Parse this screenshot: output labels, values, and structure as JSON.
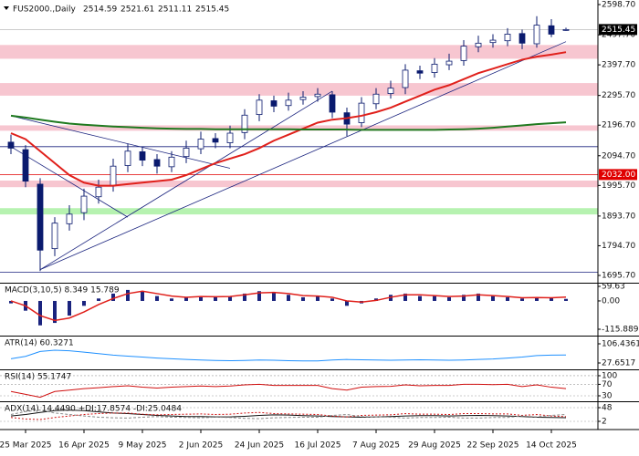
{
  "chart_data": [
    {
      "type": "candlestick",
      "title": "FUS2000.,Daily",
      "categories": [
        null,
        "25 Mar 2025",
        null,
        null,
        null,
        "16 Apr 2025",
        null,
        null,
        null,
        "9 May 2025",
        null,
        null,
        null,
        "2 Jun 2025",
        null,
        null,
        null,
        "24 Jun 2025",
        null,
        null,
        null,
        "16 Jul 2025",
        null,
        null,
        null,
        "7 Aug 2025",
        null,
        null,
        null,
        "29 Aug 2025",
        null,
        null,
        null,
        "22 Sep 2025",
        null,
        null,
        null,
        "14 Oct 2025",
        null
      ],
      "open": [
        2140,
        2115,
        2000,
        1785,
        1868,
        1905,
        1958,
        1995,
        2062,
        2108,
        2082,
        2058,
        2092,
        2118,
        2152,
        2138,
        2172,
        2232,
        2278,
        2262,
        2282,
        2292,
        2298,
        2238,
        2205,
        2268,
        2302,
        2322,
        2378,
        2372,
        2398,
        2412,
        2458,
        2472,
        2478,
        2502,
        2468,
        2528,
        2514.59
      ],
      "high": [
        2165,
        2130,
        2020,
        1890,
        1930,
        1985,
        2015,
        2085,
        2135,
        2125,
        2100,
        2110,
        2145,
        2175,
        2170,
        2195,
        2250,
        2300,
        2295,
        2305,
        2310,
        2320,
        2310,
        2255,
        2290,
        2320,
        2345,
        2400,
        2395,
        2420,
        2435,
        2480,
        2495,
        2500,
        2520,
        2515,
        2560,
        2550,
        2521.61
      ],
      "low": [
        2100,
        1990,
        1710,
        1760,
        1845,
        1880,
        1935,
        1975,
        2040,
        2060,
        2035,
        2040,
        2070,
        2100,
        2120,
        2120,
        2150,
        2210,
        2240,
        2245,
        2265,
        2275,
        2220,
        2160,
        2190,
        2250,
        2285,
        2300,
        2350,
        2355,
        2380,
        2395,
        2440,
        2455,
        2460,
        2450,
        2455,
        2490,
        2511.11
      ],
      "close": [
        2120,
        2010,
        1780,
        1870,
        1900,
        1960,
        1990,
        2060,
        2110,
        2080,
        2060,
        2090,
        2120,
        2150,
        2140,
        2170,
        2230,
        2280,
        2260,
        2280,
        2290,
        2300,
        2240,
        2200,
        2270,
        2300,
        2320,
        2380,
        2370,
        2400,
        2410,
        2460,
        2470,
        2480,
        2500,
        2470,
        2530,
        2500,
        2515.45
      ],
      "candle_color": "#0a1a6e",
      "series": [
        {
          "color": "#e0201b",
          "values": [
            2170,
            2150,
            2110,
            2070,
            2030,
            2005,
            1995,
            1995,
            2000,
            2005,
            2010,
            2015,
            2030,
            2050,
            2070,
            2085,
            2100,
            2120,
            2145,
            2165,
            2185,
            2205,
            2215,
            2220,
            2228,
            2240,
            2255,
            2275,
            2295,
            2315,
            2330,
            2350,
            2370,
            2385,
            2400,
            2415,
            2425,
            2432,
            2440
          ]
        },
        {
          "color": "#1f7a1f",
          "values": [
            2228,
            2222,
            2215,
            2208,
            2202,
            2198,
            2195,
            2192,
            2190,
            2188,
            2186,
            2185,
            2184,
            2184,
            2183,
            2183,
            2183,
            2183,
            2183,
            2183,
            2182,
            2182,
            2182,
            2182,
            2181,
            2181,
            2181,
            2181,
            2181,
            2181,
            2182,
            2183,
            2185,
            2188,
            2192,
            2196,
            2200,
            2203,
            2206
          ]
        }
      ],
      "zones": [
        {
          "from": 2418,
          "to": 2464,
          "color": "#f7c6d0"
        },
        {
          "from": 2295,
          "to": 2337,
          "color": "#f7c6d0"
        },
        {
          "from": 2178,
          "to": 2196,
          "color": "#f7c6d0"
        },
        {
          "from": 1990,
          "to": 2012,
          "color": "#f7c6d0"
        },
        {
          "from": 1899,
          "to": 1920,
          "color": "#b6f2b0"
        }
      ],
      "hlines": [
        {
          "value": 2125,
          "color": "#1a237e"
        },
        {
          "value": 1706,
          "color": "#1a237e"
        }
      ],
      "trendlines": [
        {
          "from": [
            0,
            2228
          ],
          "to": [
            15,
            2053
          ],
          "color": "#1a237e"
        },
        {
          "from": [
            0,
            2125
          ],
          "to": [
            8,
            1890
          ],
          "color": "#1a237e"
        },
        {
          "from": [
            2,
            1715
          ],
          "to": [
            22,
            2310
          ],
          "color": "#1a237e"
        },
        {
          "from": [
            2,
            1715
          ],
          "to": [
            38,
            2475
          ],
          "color": "#1a237e"
        }
      ],
      "levels": [
        {
          "value": 2032,
          "label": "2032.00",
          "color": "#e00000"
        }
      ],
      "last": {
        "value": 2515.45,
        "label": "2515.45",
        "color": "#000000"
      },
      "ylim": [
        1671.4,
        2613.9
      ],
      "yticks": [
        {
          "value": 2598.7,
          "label": "2598.70"
        },
        {
          "value": 2497.7,
          "label": "2497.70"
        },
        {
          "value": 2397.7,
          "label": "2397.70"
        },
        {
          "value": 2295.7,
          "label": "2295.70"
        },
        {
          "value": 2196.7,
          "label": "2196.70"
        },
        {
          "value": 2094.7,
          "label": "2094.70"
        },
        {
          "value": 1995.7,
          "label": "1995.70"
        },
        {
          "value": 1893.7,
          "label": "1893.70"
        },
        {
          "value": 1794.7,
          "label": "1794.70"
        },
        {
          "value": 1695.7,
          "label": "1695.70"
        }
      ]
    },
    {
      "type": "macd",
      "title": "MACD(3,10,5) 8.349 15.789",
      "values": [
        -10,
        -40,
        -100,
        -90,
        -60,
        -20,
        10,
        30,
        45,
        40,
        20,
        10,
        15,
        20,
        15,
        20,
        30,
        40,
        35,
        25,
        15,
        20,
        10,
        -20,
        -10,
        10,
        25,
        30,
        20,
        20,
        15,
        25,
        30,
        20,
        15,
        10,
        15,
        12,
        8.349
      ],
      "color": "#1a237e",
      "series": [
        {
          "color": "#e0201b",
          "values": [
            0,
            -20,
            -60,
            -80,
            -70,
            -45,
            -15,
            10,
            30,
            40,
            30,
            20,
            15,
            18,
            17,
            18,
            25,
            33,
            35,
            30,
            22,
            20,
            15,
            0,
            -5,
            2,
            15,
            25,
            25,
            22,
            18,
            20,
            25,
            22,
            18,
            13,
            14,
            13,
            15.789
          ]
        }
      ],
      "ylim": [
        -142,
        70.8
      ],
      "yticks": [
        {
          "value": 59.63,
          "label": "59.63"
        },
        {
          "value": 0,
          "label": "0.00"
        },
        {
          "value": -115.889,
          "label": "-115.889"
        }
      ]
    },
    {
      "type": "line",
      "title": "ATR(14) 60.3271",
      "series": [
        {
          "color": "#1e90ff",
          "values": [
            45,
            55,
            75,
            80,
            78,
            72,
            66,
            60,
            56,
            52,
            48,
            45,
            42,
            40,
            38,
            37,
            38,
            40,
            39,
            37,
            36,
            36,
            40,
            42,
            41,
            40,
            39,
            40,
            41,
            40,
            39,
            40,
            42,
            44,
            48,
            52,
            58,
            60,
            60.3271
          ]
        }
      ],
      "ylim": [
        1.4,
        136.4
      ],
      "yticks": [
        {
          "value": 106.4361,
          "label": "106.4361"
        },
        {
          "value": 27.6517,
          "label": "27.6517"
        }
      ]
    },
    {
      "type": "line",
      "title": "RSI(14) 55.1747",
      "series": [
        {
          "color": "#d01010",
          "values": [
            45,
            35,
            25,
            45,
            50,
            55,
            58,
            62,
            65,
            60,
            57,
            60,
            62,
            64,
            62,
            64,
            68,
            70,
            66,
            66,
            66,
            66,
            55,
            50,
            60,
            62,
            63,
            68,
            65,
            66,
            66,
            70,
            70,
            69,
            70,
            62,
            68,
            60,
            55.1747
          ]
        }
      ],
      "grid": "dashed",
      "ylim": [
        10.9,
        119
      ],
      "yticks": [
        100,
        70,
        30
      ]
    },
    {
      "type": "line",
      "title": "ADX(14) 14.4490 +DI:17.8574 -DI:25.0484",
      "series": [
        {
          "color": "#111111",
          "values": [
            20,
            25,
            32,
            38,
            40,
            38,
            34,
            30,
            28,
            25,
            22,
            20,
            18,
            18,
            17,
            17,
            19,
            22,
            24,
            23,
            21,
            20,
            18,
            17,
            16,
            17,
            18,
            20,
            21,
            21,
            20,
            21,
            22,
            21,
            20,
            18,
            16,
            15,
            14.449
          ]
        },
        {
          "color": "#d01010",
          "dash": "2,2",
          "values": [
            15,
            10,
            8,
            15,
            20,
            25,
            28,
            30,
            30,
            26,
            24,
            25,
            26,
            27,
            25,
            26,
            30,
            32,
            28,
            27,
            26,
            25,
            20,
            17,
            22,
            23,
            24,
            28,
            26,
            26,
            25,
            28,
            28,
            27,
            27,
            22,
            25,
            20,
            17.8574
          ]
        },
        {
          "color": "#888888",
          "dash": "3,2",
          "values": [
            25,
            35,
            40,
            30,
            25,
            20,
            16,
            14,
            13,
            16,
            18,
            16,
            15,
            14,
            16,
            15,
            12,
            11,
            14,
            15,
            16,
            16,
            22,
            25,
            18,
            17,
            16,
            13,
            15,
            15,
            16,
            13,
            13,
            15,
            15,
            20,
            17,
            22,
            25.0484
          ]
        }
      ],
      "grid": "dashed",
      "ylim": [
        -22.5,
        66.4
      ],
      "yticks": [
        48,
        2
      ]
    }
  ]
}
